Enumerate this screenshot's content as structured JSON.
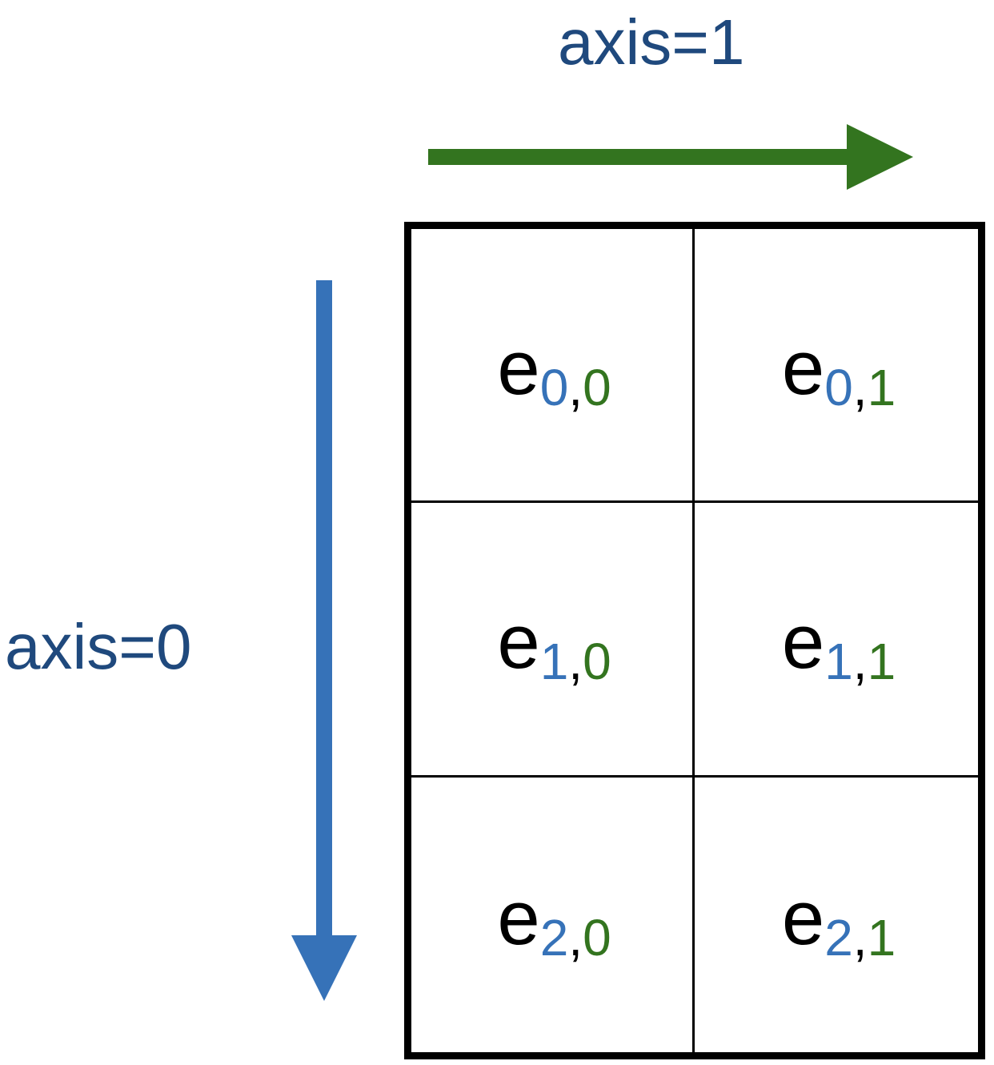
{
  "labels": {
    "axis1": "axis=1",
    "axis0": "axis=0"
  },
  "colors": {
    "label_text": "#1f497d",
    "axis1_arrow": "#33741f",
    "axis0_arrow": "#3672b8",
    "row_index": "#3672b8",
    "col_index": "#33741f",
    "element_symbol": "#000000",
    "grid_border": "#000000"
  },
  "matrix": {
    "rows": 3,
    "cols": 2,
    "symbol": "e",
    "separator": ",",
    "row_indices": [
      "0",
      "1",
      "2"
    ],
    "col_indices": [
      "0",
      "1"
    ]
  }
}
